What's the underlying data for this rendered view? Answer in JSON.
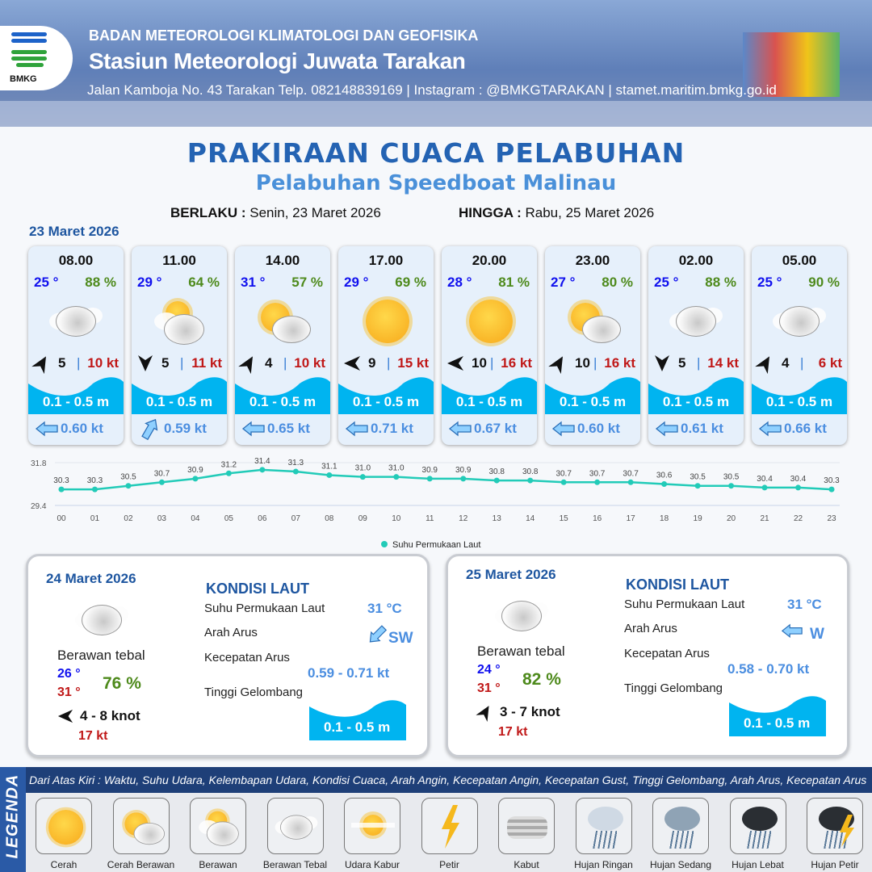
{
  "header": {
    "agency": "BADAN METEOROLOGI KLIMATOLOGI DAN GEOFISIKA",
    "station": "Stasiun Meteorologi Juwata Tarakan",
    "contact": "Jalan Kamboja No. 43 Tarakan  Telp. 082148839169 | Instagram : @BMKGTARAKAN | stamet.maritim.bmkg.go.id",
    "logo_text": "BMKG"
  },
  "title": "PRAKIRAAN CUACA PELABUHAN",
  "subtitle": "Pelabuhan Speedboat Malinau",
  "validity": {
    "from_label": "BERLAKU :",
    "from": "Senin, 23 Maret 2026",
    "to_label": "HINGGA :",
    "to": "Rabu, 25 Maret 2026"
  },
  "day1": "23 Maret 2026",
  "cards": [
    {
      "time": "08.00",
      "temp": "25 °",
      "hum": "88 %",
      "icon": "berawan-tebal",
      "wind_dir": "NE",
      "wind": "5",
      "gust": "10 kt",
      "wave": "0.1 - 0.5 m",
      "current_dir": "W",
      "current": "0.60 kt"
    },
    {
      "time": "11.00",
      "temp": "29 °",
      "hum": "64 %",
      "icon": "berawan",
      "wind_dir": "S",
      "wind": "5",
      "gust": "11 kt",
      "wave": "0.1 - 0.5 m",
      "current_dir": "NE",
      "current": "0.59 kt"
    },
    {
      "time": "14.00",
      "temp": "31 °",
      "hum": "57 %",
      "icon": "cerah-berawan",
      "wind_dir": "NE",
      "wind": "4",
      "gust": "10 kt",
      "wave": "0.1 - 0.5 m",
      "current_dir": "W",
      "current": "0.65 kt"
    },
    {
      "time": "17.00",
      "temp": "29 °",
      "hum": "69 %",
      "icon": "cerah",
      "wind_dir": "W",
      "wind": "9",
      "gust": "15 kt",
      "wave": "0.1 - 0.5 m",
      "current_dir": "W",
      "current": "0.71 kt"
    },
    {
      "time": "20.00",
      "temp": "28 °",
      "hum": "81 %",
      "icon": "cerah",
      "wind_dir": "W",
      "wind": "10",
      "gust": "16 kt",
      "wave": "0.1 - 0.5 m",
      "current_dir": "W",
      "current": "0.67 kt"
    },
    {
      "time": "23.00",
      "temp": "27 °",
      "hum": "80 %",
      "icon": "cerah-berawan",
      "wind_dir": "NE",
      "wind": "10",
      "gust": "16 kt",
      "wave": "0.1 - 0.5 m",
      "current_dir": "W",
      "current": "0.60 kt"
    },
    {
      "time": "02.00",
      "temp": "25 °",
      "hum": "88 %",
      "icon": "berawan-tebal",
      "wind_dir": "S",
      "wind": "5",
      "gust": "14 kt",
      "wave": "0.1 - 0.5 m",
      "current_dir": "W",
      "current": "0.61 kt"
    },
    {
      "time": "05.00",
      "temp": "25 °",
      "hum": "90 %",
      "icon": "berawan-tebal",
      "wind_dir": "NE",
      "wind": "4",
      "gust": "6 kt",
      "wave": "0.1 - 0.5 m",
      "current_dir": "W",
      "current": "0.66 kt"
    }
  ],
  "chart_data": {
    "type": "line",
    "categories": [
      "00",
      "01",
      "02",
      "03",
      "04",
      "05",
      "06",
      "07",
      "08",
      "09",
      "10",
      "11",
      "12",
      "13",
      "14",
      "15",
      "16",
      "17",
      "18",
      "19",
      "20",
      "21",
      "22",
      "23"
    ],
    "series": [
      {
        "name": "Suhu Permukaan Laut",
        "values": [
          30.3,
          30.3,
          30.5,
          30.7,
          30.9,
          31.2,
          31.4,
          31.3,
          31.1,
          31.0,
          31.0,
          30.9,
          30.9,
          30.8,
          30.8,
          30.7,
          30.7,
          30.7,
          30.6,
          30.5,
          30.5,
          30.4,
          30.4,
          30.3
        ]
      }
    ],
    "yticks": [
      "31.8",
      "29.4"
    ],
    "ylim": [
      29.4,
      31.8
    ],
    "legend": "bottom",
    "color": "#22cbb8"
  },
  "days": [
    {
      "date": "24 Maret 2026",
      "condition": "Berawan tebal",
      "tmin": "26 °",
      "tmax": "31 °",
      "hum": "76 %",
      "wind": "4  - 8 knot",
      "gust": "17 kt",
      "sea_title": "KONDISI LAUT",
      "sst_label": "Suhu Permukaan Laut",
      "sst": "31 °C",
      "cur_dir_label": "Arah Arus",
      "cur_dir": "SW",
      "cur_speed_label": "Kecepatan Arus",
      "cur_speed": "0.59 - 0.71 kt",
      "wave_label": "Tinggi Gelombang",
      "wave": "0.1 - 0.5 m"
    },
    {
      "date": "25 Maret 2026",
      "condition": "Berawan tebal",
      "tmin": "24 °",
      "tmax": "31 °",
      "hum": "82 %",
      "wind": "3  - 7 knot",
      "gust": "17 kt",
      "sea_title": "KONDISI LAUT",
      "sst_label": "Suhu Permukaan Laut",
      "sst": "31 °C",
      "cur_dir_label": "Arah Arus",
      "cur_dir": "W",
      "cur_speed_label": "Kecepatan Arus",
      "cur_speed": "0.58 - 0.70 kt",
      "wave_label": "Tinggi Gelombang",
      "wave": "0.1 - 0.5 m"
    }
  ],
  "legend": {
    "side": "LEGENDA",
    "note": "Dari Atas Kiri : Waktu, Suhu Udara, Kelembapan Udara, Kondisi Cuaca, Arah Angin, Kecepatan Angin, Kecepatan Gust, Tinggi Gelombang, Arah Arus, Kecepatan Arus",
    "items": [
      "Cerah",
      "Cerah Berawan",
      "Berawan",
      "Berawan Tebal",
      "Udara Kabur",
      "Petir",
      "Kabut",
      "Hujan Ringan",
      "Hujan Sedang",
      "Hujan Lebat",
      "Hujan Petir"
    ]
  }
}
